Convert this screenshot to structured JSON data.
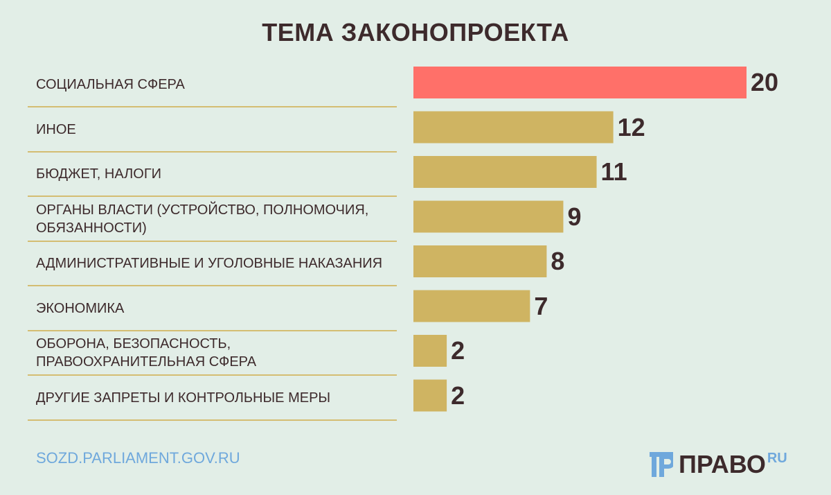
{
  "chart_data": {
    "type": "bar",
    "orientation": "horizontal",
    "title": "ТЕМА ЗАКОНОПРОЕКТА",
    "categories": [
      "СОЦИАЛЬНАЯ СФЕРА",
      "ИНОЕ",
      "БЮДЖЕТ, НАЛОГИ",
      "ОРГАНЫ ВЛАСТИ (УСТРОЙСТВО, ПОЛНОМОЧИЯ, ОБЯЗАННОСТИ)",
      "АДМИНИСТРАТИВНЫЕ И УГОЛОВНЫЕ НАКАЗАНИЯ",
      "ЭКОНОМИКА",
      "ОБОРОНА, БЕЗОПАСНОСТЬ, ПРАВООХРАНИТЕЛЬНАЯ СФЕРА",
      "ДРУГИЕ ЗАПРЕТЫ И КОНТРОЛЬНЫЕ МЕРЫ"
    ],
    "values": [
      20,
      12,
      11,
      9,
      8,
      7,
      2,
      2
    ],
    "xlim": [
      0,
      20
    ],
    "grid": false,
    "colors": {
      "highlight": "#ff7069",
      "bar": "#cfb462"
    }
  },
  "source": "SOZD.PARLIAMENT.GOV.RU",
  "logo": {
    "mark": "ПР",
    "text": "ПРАВО",
    "suffix": "RU"
  }
}
